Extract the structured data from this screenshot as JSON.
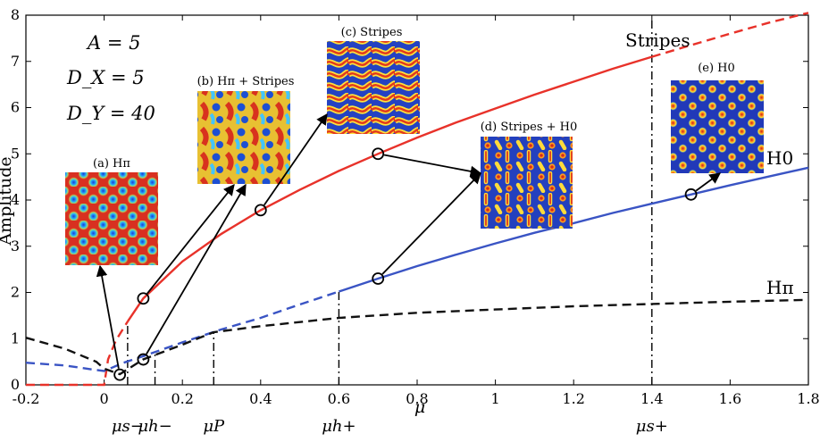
{
  "chart_data": {
    "type": "line",
    "xlabel": "μ",
    "ylabel": "Amplitude",
    "xlim": [
      -0.2,
      1.8
    ],
    "ylim": [
      0,
      8
    ],
    "x_ticks": [
      "-0.2",
      "0",
      "0.2",
      "0.4",
      "0.6",
      "0.8",
      "1",
      "1.2",
      "1.4",
      "1.6",
      "1.8"
    ],
    "y_ticks": [
      "0",
      "1",
      "2",
      "3",
      "4",
      "5",
      "6",
      "7",
      "8"
    ],
    "params": [
      "A = 5",
      "D_X = 5",
      "D_Y = 40"
    ],
    "series": [
      {
        "name": "Stripes",
        "color": "#e8322a",
        "stable": [
          [
            0.06,
            1.37
          ],
          [
            0.1,
            1.87
          ],
          [
            0.2,
            2.67
          ],
          [
            0.3,
            3.27
          ],
          [
            0.4,
            3.78
          ],
          [
            0.5,
            4.22
          ],
          [
            0.6,
            4.63
          ],
          [
            0.7,
            5.0
          ],
          [
            0.8,
            5.35
          ],
          [
            0.9,
            5.68
          ],
          [
            1.0,
            5.98
          ],
          [
            1.1,
            6.28
          ],
          [
            1.2,
            6.56
          ],
          [
            1.3,
            6.84
          ],
          [
            1.4,
            7.1
          ]
        ],
        "unstable": [
          [
            -0.2,
            0.0
          ],
          [
            0.0,
            0.0
          ],
          [
            0.01,
            0.55
          ],
          [
            0.03,
            0.96
          ],
          [
            0.06,
            1.37
          ]
        ],
        "unstable_tail": [
          [
            1.4,
            7.1
          ],
          [
            1.5,
            7.35
          ],
          [
            1.6,
            7.6
          ],
          [
            1.7,
            7.84
          ],
          [
            1.8,
            8.05
          ]
        ]
      },
      {
        "name": "H0",
        "color": "#3a54c4",
        "stable": [
          [
            0.6,
            2.02
          ],
          [
            0.7,
            2.3
          ],
          [
            0.8,
            2.57
          ],
          [
            0.9,
            2.82
          ],
          [
            1.0,
            3.06
          ],
          [
            1.1,
            3.29
          ],
          [
            1.2,
            3.5
          ],
          [
            1.3,
            3.72
          ],
          [
            1.4,
            3.92
          ],
          [
            1.5,
            4.12
          ],
          [
            1.6,
            4.32
          ],
          [
            1.7,
            4.51
          ],
          [
            1.8,
            4.7
          ]
        ],
        "unstable": [
          [
            -0.2,
            0.48
          ],
          [
            -0.1,
            0.42
          ],
          [
            -0.02,
            0.32
          ],
          [
            0.0,
            0.3
          ],
          [
            0.05,
            0.48
          ],
          [
            0.1,
            0.62
          ],
          [
            0.2,
            0.92
          ],
          [
            0.3,
            1.2
          ],
          [
            0.4,
            1.45
          ],
          [
            0.5,
            1.74
          ],
          [
            0.6,
            2.02
          ]
        ]
      },
      {
        "name": "Hπ",
        "color": "#111111",
        "unstable": [
          [
            -0.2,
            1.02
          ],
          [
            -0.1,
            0.78
          ],
          [
            -0.02,
            0.5
          ],
          [
            0.0,
            0.35
          ],
          [
            0.04,
            0.23
          ],
          [
            0.1,
            0.55
          ],
          [
            0.2,
            0.87
          ],
          [
            0.28,
            1.14
          ],
          [
            0.4,
            1.27
          ],
          [
            0.6,
            1.45
          ],
          [
            0.8,
            1.56
          ],
          [
            1.0,
            1.63
          ],
          [
            1.2,
            1.7
          ],
          [
            1.4,
            1.75
          ],
          [
            1.6,
            1.8
          ],
          [
            1.8,
            1.84
          ]
        ]
      }
    ],
    "markers": [
      {
        "x": 0.04,
        "y": 0.22,
        "link": "a"
      },
      {
        "x": 0.1,
        "y": 0.55,
        "link": "b"
      },
      {
        "x": 0.1,
        "y": 1.87,
        "link": "b"
      },
      {
        "x": 0.4,
        "y": 3.78,
        "link": "c"
      },
      {
        "x": 0.7,
        "y": 5.0,
        "link": "d"
      },
      {
        "x": 0.7,
        "y": 2.3,
        "link": "d"
      },
      {
        "x": 1.5,
        "y": 4.12,
        "link": "e"
      }
    ],
    "thresholds": [
      {
        "label": "μs−",
        "x": 0.06,
        "top": 1.37
      },
      {
        "label": "μh−",
        "x": 0.13,
        "top": 0.68
      },
      {
        "label": "μP",
        "x": 0.28,
        "top": 1.14
      },
      {
        "label": "μh+",
        "x": 0.6,
        "top": 2.02
      },
      {
        "label": "μs+",
        "x": 1.4,
        "top": 7.9
      }
    ],
    "curve_labels": {
      "stripes": "Stripes",
      "h0": "H0",
      "hpi": "Hπ"
    },
    "insets": [
      {
        "id": "a",
        "title": "(a) Hπ",
        "pattern": "hex-spots-on-red"
      },
      {
        "id": "b",
        "title": "(b) Hπ + Stripes",
        "pattern": "mixed"
      },
      {
        "id": "c",
        "title": "(c) Stripes",
        "pattern": "labyrinth-stripes"
      },
      {
        "id": "d",
        "title": "(d) Stripes + H0",
        "pattern": "mixed-spots-stripes"
      },
      {
        "id": "e",
        "title": "(e) H0",
        "pattern": "hex-spots-on-blue"
      }
    ]
  }
}
